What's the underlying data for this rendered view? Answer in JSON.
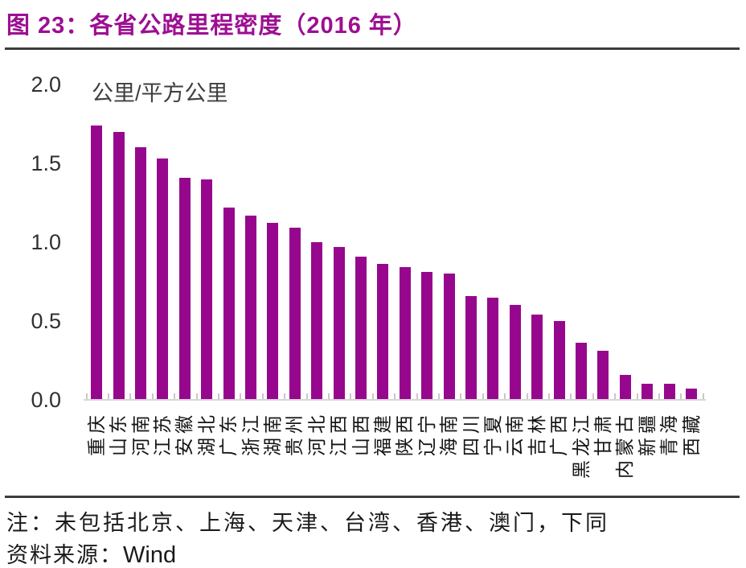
{
  "figure": {
    "title": "图 23：各省公路里程密度（2016 年）",
    "note": "注：未包括北京、上海、天津、台湾、香港、澳门，下同",
    "source_label": "资料来源：",
    "source_value": "Wind"
  },
  "colors": {
    "accent_title": "#9c0f92",
    "bar": "#97078d",
    "axis_line": "#d6d6d6",
    "axis_tick": "#c8c8c8"
  },
  "chart_data": {
    "type": "bar",
    "title": "各省公路里程密度（2016 年）",
    "unit_label": "公里/平方公里",
    "xlabel": "",
    "ylabel": "公里/平方公里",
    "ylim": [
      0,
      2.0
    ],
    "yticks": [
      "2.0",
      "1.5",
      "1.0",
      "0.5",
      "0.0"
    ],
    "ytick_values": [
      2.0,
      1.5,
      1.0,
      0.5,
      0.0
    ],
    "grid": false,
    "legend": false,
    "categories": [
      "重庆",
      "山东",
      "河南",
      "江苏",
      "安徽",
      "湖北",
      "广东",
      "浙江",
      "湖南",
      "贵州",
      "河北",
      "江西",
      "山西",
      "福建",
      "陕西",
      "辽宁",
      "海南",
      "四川",
      "宁夏",
      "云南",
      "吉林",
      "广西",
      "黑龙江",
      "甘肃",
      "内蒙古",
      "新疆",
      "青海",
      "西藏"
    ],
    "values": [
      1.74,
      1.7,
      1.6,
      1.53,
      1.41,
      1.4,
      1.22,
      1.17,
      1.12,
      1.09,
      1.0,
      0.97,
      0.91,
      0.86,
      0.84,
      0.81,
      0.8,
      0.66,
      0.65,
      0.6,
      0.54,
      0.5,
      0.36,
      0.31,
      0.16,
      0.1,
      0.1,
      0.07
    ]
  }
}
